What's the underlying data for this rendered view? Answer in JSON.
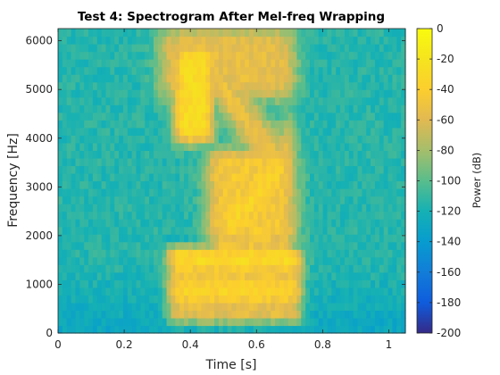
{
  "chart_data": {
    "type": "heatmap",
    "title": "Test 4: Spectrogram After Mel-freq Wrapping",
    "xlabel": "Time [s]",
    "ylabel": "Frequency [Hz]",
    "colorbar_label": "Power (dB)",
    "xlim": [
      0,
      1.05
    ],
    "ylim": [
      0,
      6250
    ],
    "clim": [
      -200,
      0
    ],
    "colormap": "parula",
    "x_ticks": [
      0,
      0.2,
      0.4,
      0.6,
      0.8,
      1
    ],
    "x_tick_labels": [
      "0",
      "0.2",
      "0.4",
      "0.6",
      "0.8",
      "1"
    ],
    "y_ticks": [
      0,
      1000,
      2000,
      3000,
      4000,
      5000,
      6000
    ],
    "y_tick_labels": [
      "0",
      "1000",
      "2000",
      "3000",
      "4000",
      "5000",
      "6000"
    ],
    "colorbar_ticks": [
      0,
      -20,
      -40,
      -60,
      -80,
      -100,
      -120,
      -140,
      -160,
      -180,
      -200
    ],
    "colorbar_tick_labels": [
      "0",
      "-20",
      "-40",
      "-60",
      "-80",
      "-100",
      "-120",
      "-140",
      "-160",
      "-180",
      "-200"
    ],
    "time_bins": 40,
    "freq_bins": 40,
    "features": [
      {
        "t_start": 0.33,
        "t_end": 0.46,
        "f_low": 250,
        "f_high": 1800,
        "power_db": -40
      },
      {
        "t_start": 0.33,
        "t_end": 0.74,
        "f_low": 400,
        "f_high": 1000,
        "power_db": -35
      },
      {
        "t_start": 0.36,
        "t_end": 0.46,
        "f_low": 3900,
        "f_high": 5900,
        "power_db": -25
      },
      {
        "t_start": 0.3,
        "t_end": 0.72,
        "f_low": 5000,
        "f_high": 6250,
        "power_db": -45
      },
      {
        "t_start": 0.48,
        "t_end": 0.7,
        "f_low": 1500,
        "f_high": 3800,
        "power_db": -35
      },
      {
        "t_start": 0.0,
        "t_end": 0.3,
        "f_low": 0,
        "f_high": 1200,
        "power_db": -150
      }
    ],
    "grid": false,
    "colorbar_position": "right"
  }
}
